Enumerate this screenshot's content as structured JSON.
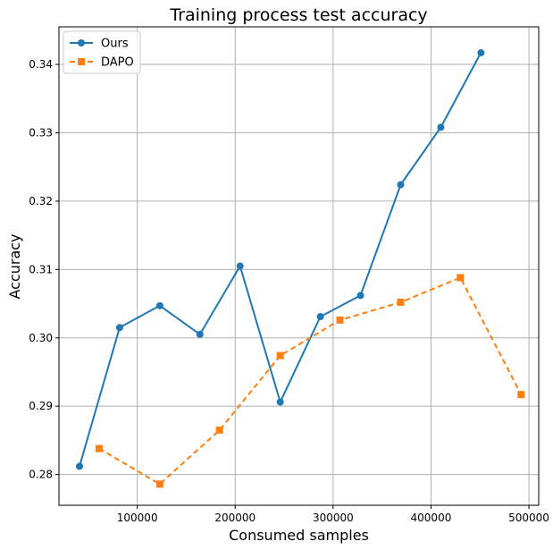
{
  "chart_data": {
    "type": "line",
    "title": "Training process test accuracy",
    "xlabel": "Consumed samples",
    "ylabel": "Accuracy",
    "xlim": [
      20000,
      510000
    ],
    "ylim": [
      0.2755,
      0.3455
    ],
    "x_ticks": [
      100000,
      200000,
      300000,
      400000,
      500000
    ],
    "x_tick_labels": [
      "100000",
      "200000",
      "300000",
      "400000",
      "500000"
    ],
    "y_ticks": [
      0.28,
      0.29,
      0.3,
      0.31,
      0.32,
      0.33,
      0.34
    ],
    "y_tick_labels": [
      "0.28",
      "0.29",
      "0.30",
      "0.31",
      "0.32",
      "0.33",
      "0.34"
    ],
    "grid": true,
    "legend_position": "top-left",
    "series": [
      {
        "name": "Ours",
        "color": "#1f77b4",
        "line_style": "solid",
        "marker": "circle",
        "x": [
          41000,
          82000,
          123000,
          164000,
          205000,
          246000,
          287000,
          328000,
          369000,
          410000,
          451000
        ],
        "y": [
          0.2812,
          0.3015,
          0.3047,
          0.3005,
          0.3105,
          0.2906,
          0.3031,
          0.3062,
          0.3224,
          0.3308,
          0.3417
        ]
      },
      {
        "name": "DAPO",
        "color": "#ff7f0e",
        "line_style": "dashed",
        "marker": "square",
        "x": [
          61000,
          123000,
          184000,
          246000,
          307000,
          369000,
          430000,
          492000
        ],
        "y": [
          0.2838,
          0.2786,
          0.2865,
          0.2974,
          0.3026,
          0.3052,
          0.3088,
          0.2917
        ]
      }
    ]
  }
}
